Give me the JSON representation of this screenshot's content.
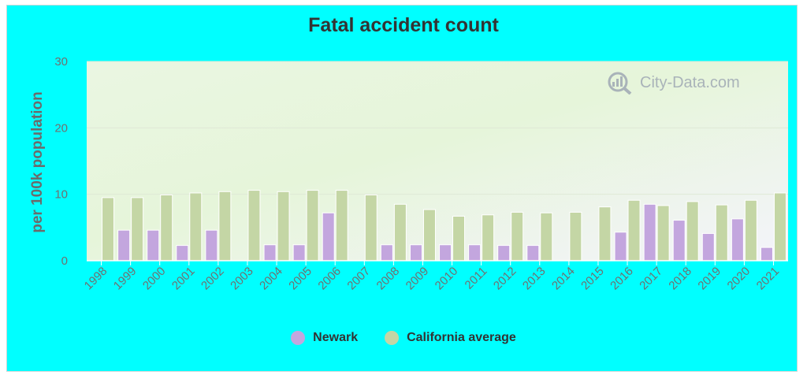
{
  "chart_data": {
    "type": "bar",
    "title": "Fatal accident count",
    "ylabel": "per 100k population",
    "xlabel": "",
    "ylim": [
      0,
      30
    ],
    "yticks": [
      0,
      10,
      20,
      30
    ],
    "categories": [
      "1998",
      "1999",
      "2000",
      "2001",
      "2002",
      "2003",
      "2004",
      "2005",
      "2006",
      "2007",
      "2008",
      "2009",
      "2010",
      "2011",
      "2012",
      "2013",
      "2014",
      "2015",
      "2016",
      "2017",
      "2018",
      "2019",
      "2020",
      "2021"
    ],
    "series": [
      {
        "name": "Newark",
        "color": "#c3a6de",
        "values": [
          0,
          4.6,
          4.6,
          2.3,
          4.6,
          0,
          2.4,
          2.4,
          7.2,
          0,
          2.4,
          2.4,
          2.4,
          2.4,
          2.3,
          2.3,
          0,
          0,
          4.3,
          8.5,
          6.1,
          4.1,
          6.3,
          2.0
        ]
      },
      {
        "name": "California average",
        "color": "#c4d6a5",
        "values": [
          9.5,
          9.5,
          9.9,
          10.2,
          10.4,
          10.6,
          10.4,
          10.6,
          10.6,
          9.9,
          8.5,
          7.7,
          6.7,
          6.9,
          7.3,
          7.2,
          7.3,
          8.1,
          9.1,
          8.3,
          8.9,
          8.4,
          9.1,
          10.2
        ]
      }
    ],
    "grid": true,
    "legend_position": "bottom"
  },
  "watermark": {
    "text": "City-Data.com",
    "icon": "magnifier-chart-icon"
  }
}
